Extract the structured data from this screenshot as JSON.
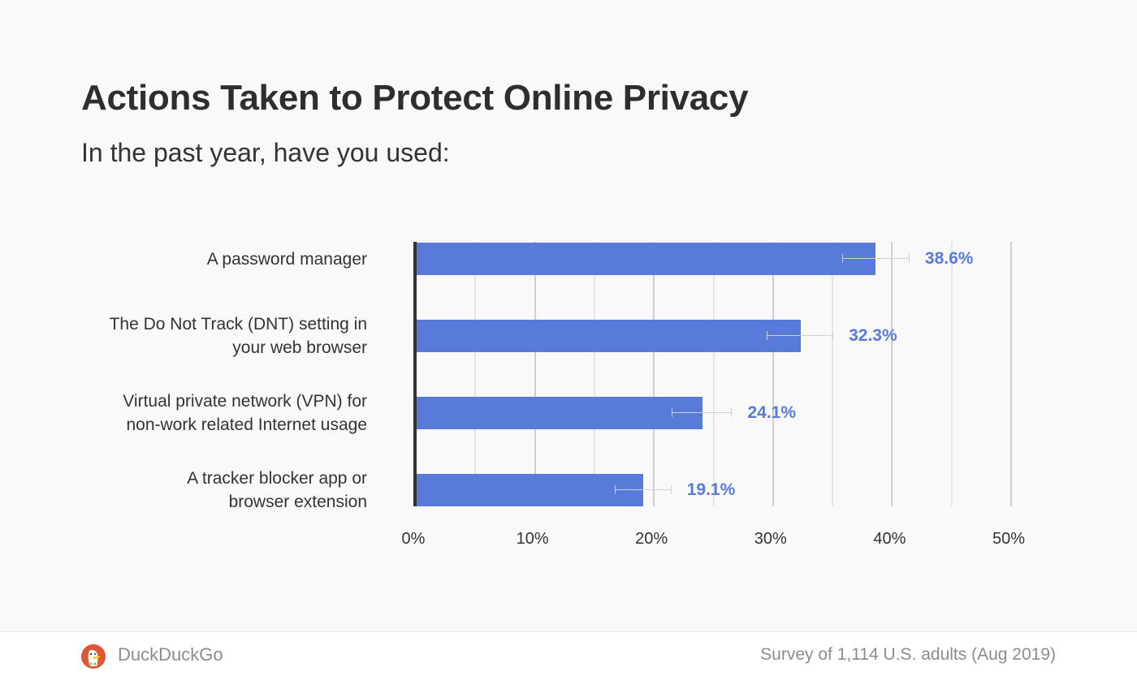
{
  "header": {
    "title": "Actions Taken to Protect Online Privacy",
    "subtitle": "In the past year, have you used:"
  },
  "footer": {
    "brand": "DuckDuckGo",
    "source": "Survey of 1,114 U.S. adults (Aug 2019)"
  },
  "colors": {
    "bar": "#587bd9",
    "value_label": "#587bd9",
    "axis": "#333333",
    "grid_major": "#cfcfcf",
    "grid_minor": "#e6e6e6",
    "error_bar": "#d0d0d0"
  },
  "chart_data": {
    "type": "bar",
    "orientation": "horizontal",
    "title": "Actions Taken to Protect Online Privacy",
    "subtitle": "In the past year, have you used:",
    "categories": [
      "A password manager",
      "The Do Not Track (DNT) setting in your web browser",
      "Virtual private network (VPN) for non-work related Internet usage",
      "A tracker blocker app or browser extension"
    ],
    "values": [
      38.6,
      32.3,
      24.1,
      19.1
    ],
    "value_labels": [
      "38.6%",
      "32.3%",
      "24.1%",
      "19.1%"
    ],
    "error_bars": [
      [
        35.8,
        41.4
      ],
      [
        29.5,
        35.0
      ],
      [
        21.5,
        26.5
      ],
      [
        16.7,
        21.4
      ]
    ],
    "xlabel": "",
    "ylabel": "",
    "xlim": [
      0,
      50
    ],
    "x_ticks": [
      "0%",
      "10%",
      "20%",
      "30%",
      "40%",
      "50%"
    ],
    "grid": true,
    "legend": null,
    "source": "Survey of 1,114 U.S. adults (Aug 2019)"
  },
  "labels": {
    "cat0": [
      "A password manager"
    ],
    "cat1": [
      "The Do Not Track (DNT) setting in",
      "your web browser"
    ],
    "cat2": [
      "Virtual private network (VPN) for",
      "non-work related Internet usage"
    ],
    "cat3": [
      "A tracker blocker app or",
      "browser extension"
    ]
  }
}
